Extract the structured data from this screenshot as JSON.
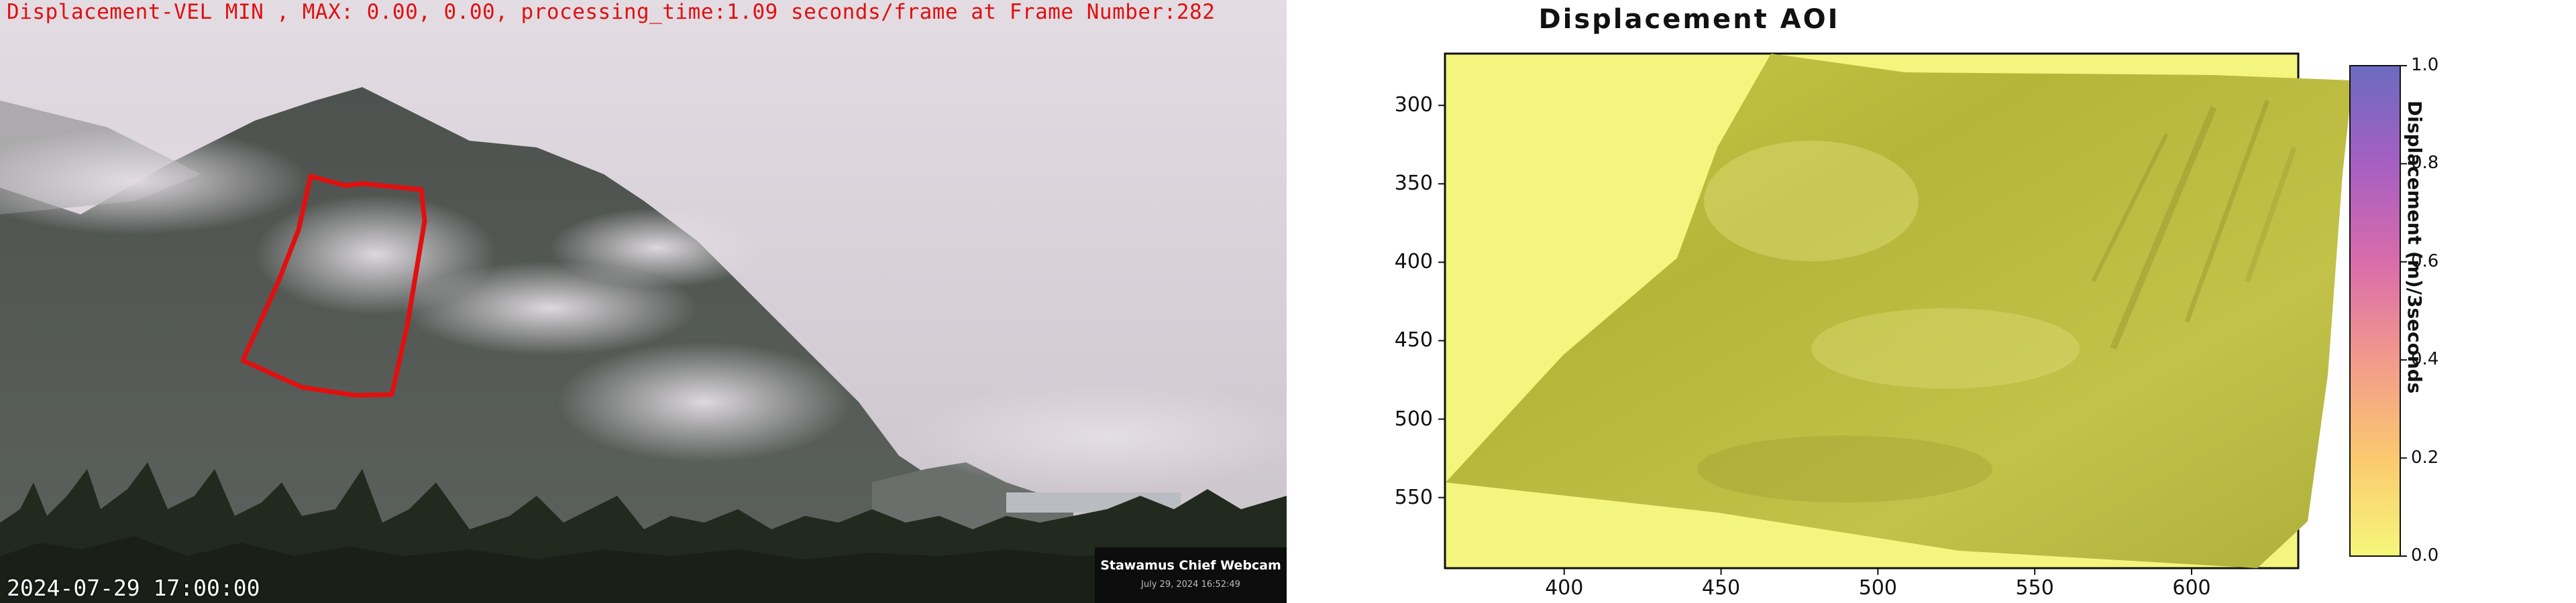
{
  "webcam": {
    "overlay_text": "Displacement-VEL MIN , MAX: 0.00, 0.00, processing_time:1.09 seconds/frame at Frame Number:282",
    "timestamp": "2024-07-29 17:00:00",
    "camera_name": "Stawamus Chief Webcam",
    "camera_date": "July 29, 2024 16:52:49",
    "aoi_color": "#e01010"
  },
  "chart_data": {
    "type": "heatmap",
    "title": "Displacement AOI",
    "x_ticks": [
      "400",
      "450",
      "500",
      "550",
      "600"
    ],
    "x_tick_values": [
      400,
      450,
      500,
      550,
      600
    ],
    "xlim": [
      362,
      634
    ],
    "y_ticks": [
      "300",
      "350",
      "400",
      "450",
      "500",
      "550"
    ],
    "y_tick_values": [
      300,
      350,
      400,
      450,
      500,
      550
    ],
    "ylim": [
      595,
      267
    ],
    "colorbar": {
      "label": "Displacement (m)/3seconds",
      "ticks": [
        "0.0",
        "0.2",
        "0.4",
        "0.6",
        "0.8",
        "1.0"
      ],
      "tick_values": [
        0.0,
        0.2,
        0.4,
        0.6,
        0.8,
        1.0
      ],
      "range": [
        0.0,
        1.0
      ],
      "colors": [
        "#f6f77a",
        "#fbc96f",
        "#f29a8c",
        "#d96cab",
        "#a65fc2",
        "#6b6bbf"
      ]
    },
    "background_color": "#f3f57e",
    "values_note_min": 0.0,
    "values_note_max": 0.0
  }
}
